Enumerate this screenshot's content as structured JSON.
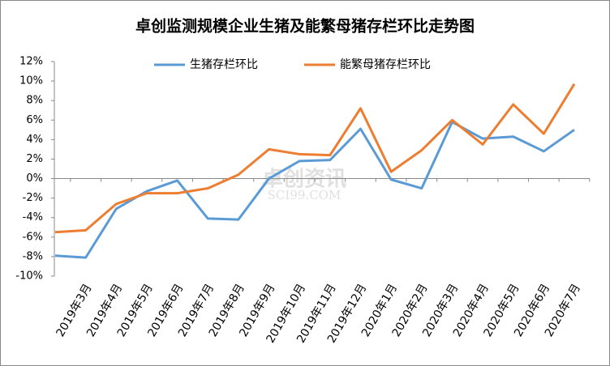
{
  "chart_data": {
    "type": "line",
    "title": "卓创监测规模企业生猪及能繁母猪存栏环比走势图",
    "categories": [
      null,
      "2019年3月",
      "2019年4月",
      "2019年5月",
      "2019年6月",
      "2019年7月",
      "2019年8月",
      "2019年9月",
      "2019年10月",
      "2019年11月",
      "2019年12月",
      "2020年1月",
      "2020年2月",
      "2020年3月",
      "2020年4月",
      "2020年5月",
      "2020年6月",
      "2020年7月"
    ],
    "series": [
      {
        "name": "生猪存栏环比",
        "color": "#5b9bd5",
        "values": [
          -7.9,
          -8.1,
          -3.1,
          -1.3,
          -0.2,
          -4.1,
          -4.2,
          0,
          1.8,
          1.9,
          5.1,
          -0.1,
          -1.0,
          5.8,
          4.1,
          4.3,
          2.8,
          5.0
        ]
      },
      {
        "name": "能繁母猪存栏环比",
        "color": "#ed7d31",
        "values": [
          -5.5,
          -5.3,
          -2.6,
          -1.5,
          -1.5,
          -1.0,
          0.4,
          3.0,
          2.5,
          2.4,
          7.2,
          0.7,
          2.9,
          6.0,
          3.5,
          7.6,
          4.6,
          9.7
        ]
      }
    ],
    "ylim": [
      -10,
      12
    ],
    "yticks": [
      {
        "value": -10,
        "label": "-10%"
      },
      {
        "value": -8,
        "label": "-8%"
      },
      {
        "value": -6,
        "label": "-6%"
      },
      {
        "value": -4,
        "label": "-4%"
      },
      {
        "value": -2,
        "label": "-2%"
      },
      {
        "value": 0,
        "label": "0%"
      },
      {
        "value": 2,
        "label": "2%"
      },
      {
        "value": 4,
        "label": "4%"
      },
      {
        "value": 6,
        "label": "6%"
      },
      {
        "value": 8,
        "label": "8%"
      },
      {
        "value": 10,
        "label": "10%"
      },
      {
        "value": 12,
        "label": "12%"
      }
    ],
    "grid": false,
    "legend": "top",
    "watermark": [
      "卓创资讯",
      "SCI99.COM"
    ]
  }
}
